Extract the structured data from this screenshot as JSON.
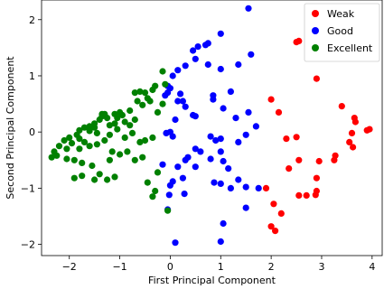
{
  "chart_data": {
    "type": "scatter",
    "xlabel": "First Principal Component",
    "ylabel": "Second Principal Component",
    "xlim": [
      -2.55,
      4.2
    ],
    "ylim": [
      -2.2,
      2.35
    ],
    "xticks": [
      -2,
      -1,
      0,
      1,
      2,
      3,
      4
    ],
    "yticks": [
      -2,
      -1,
      0,
      1,
      2
    ],
    "xtick_labels": [
      "−2",
      "−1",
      "0",
      "1",
      "2",
      "3",
      "4"
    ],
    "ytick_labels": [
      "−2",
      "−1",
      "0",
      "1",
      "2"
    ],
    "grid": false,
    "legend_position": "top-right",
    "series": [
      {
        "name": "Weak",
        "color": "#ff0000",
        "points": [
          [
            2.5,
            1.6
          ],
          [
            2.55,
            1.62
          ],
          [
            2.9,
            0.95
          ],
          [
            2.0,
            0.58
          ],
          [
            2.15,
            0.35
          ],
          [
            3.4,
            0.46
          ],
          [
            3.65,
            0.25
          ],
          [
            3.67,
            0.18
          ],
          [
            3.9,
            0.03
          ],
          [
            3.95,
            0.05
          ],
          [
            2.3,
            -0.12
          ],
          [
            2.5,
            -0.09
          ],
          [
            3.6,
            -0.02
          ],
          [
            3.55,
            -0.18
          ],
          [
            3.62,
            -0.27
          ],
          [
            2.55,
            -0.5
          ],
          [
            2.95,
            -0.52
          ],
          [
            3.25,
            -0.5
          ],
          [
            3.27,
            -0.42
          ],
          [
            2.35,
            -0.65
          ],
          [
            2.55,
            -1.13
          ],
          [
            2.7,
            -1.13
          ],
          [
            2.88,
            -1.12
          ],
          [
            2.9,
            -0.82
          ],
          [
            2.9,
            -1.05
          ],
          [
            1.9,
            -1.0
          ],
          [
            2.05,
            -1.28
          ],
          [
            2.2,
            -1.45
          ],
          [
            2.0,
            -1.68
          ],
          [
            2.08,
            -1.76
          ]
        ]
      },
      {
        "name": "Good",
        "color": "#0000ff",
        "points": [
          [
            1.55,
            2.2
          ],
          [
            1.0,
            1.75
          ],
          [
            0.75,
            1.58
          ],
          [
            0.7,
            1.55
          ],
          [
            0.55,
            1.52
          ],
          [
            0.45,
            1.45
          ],
          [
            1.6,
            1.38
          ],
          [
            1.0,
            1.12
          ],
          [
            0.5,
            1.3
          ],
          [
            0.3,
            1.18
          ],
          [
            0.15,
            1.1
          ],
          [
            1.35,
            1.2
          ],
          [
            0.75,
            1.2
          ],
          [
            0.05,
            1.0
          ],
          [
            -0.05,
            0.82
          ],
          [
            0.0,
            0.78
          ],
          [
            -0.05,
            0.7
          ],
          [
            -0.1,
            0.65
          ],
          [
            0.15,
            0.55
          ],
          [
            0.25,
            0.55
          ],
          [
            0.2,
            0.68
          ],
          [
            0.3,
            0.45
          ],
          [
            0.45,
            0.3
          ],
          [
            0.5,
            0.28
          ],
          [
            1.2,
            0.72
          ],
          [
            0.85,
            0.65
          ],
          [
            0.85,
            0.58
          ],
          [
            1.05,
            0.42
          ],
          [
            1.55,
            0.35
          ],
          [
            1.7,
            0.1
          ],
          [
            0.1,
            0.22
          ],
          [
            0.0,
            0.0
          ],
          [
            -0.08,
            -0.02
          ],
          [
            0.05,
            -0.08
          ],
          [
            0.5,
            -0.3
          ],
          [
            0.6,
            -0.35
          ],
          [
            0.8,
            -0.08
          ],
          [
            0.9,
            -0.15
          ],
          [
            1.0,
            -0.12
          ],
          [
            1.0,
            -0.35
          ],
          [
            1.3,
            0.25
          ],
          [
            1.35,
            -0.18
          ],
          [
            1.5,
            -0.05
          ],
          [
            1.05,
            -0.52
          ],
          [
            0.5,
            -0.62
          ],
          [
            0.8,
            -0.48
          ],
          [
            0.3,
            -0.5
          ],
          [
            0.35,
            -0.45
          ],
          [
            0.15,
            -0.62
          ],
          [
            0.05,
            -0.88
          ],
          [
            0.0,
            -0.95
          ],
          [
            0.25,
            -0.82
          ],
          [
            0.28,
            -1.1
          ],
          [
            -0.02,
            -1.12
          ],
          [
            -0.05,
            -1.38
          ],
          [
            0.87,
            -0.9
          ],
          [
            1.0,
            -0.92
          ],
          [
            1.15,
            -0.65
          ],
          [
            1.2,
            -1.0
          ],
          [
            1.75,
            -1.0
          ],
          [
            1.35,
            -0.85
          ],
          [
            1.5,
            -0.98
          ],
          [
            1.5,
            -1.35
          ],
          [
            -0.15,
            -0.58
          ],
          [
            1.05,
            -1.63
          ],
          [
            0.1,
            -1.97
          ],
          [
            1.0,
            -1.95
          ]
        ]
      },
      {
        "name": "Excellent",
        "color": "#008000",
        "points": [
          [
            -0.15,
            1.08
          ],
          [
            -0.1,
            0.85
          ],
          [
            -0.3,
            0.82
          ],
          [
            -0.35,
            0.75
          ],
          [
            -0.5,
            0.7
          ],
          [
            -0.6,
            0.72
          ],
          [
            -0.7,
            0.7
          ],
          [
            -0.4,
            0.55
          ],
          [
            -0.55,
            0.48
          ],
          [
            -0.65,
            0.55
          ],
          [
            -0.15,
            0.5
          ],
          [
            -0.25,
            0.35
          ],
          [
            -0.8,
            0.38
          ],
          [
            -1.0,
            0.35
          ],
          [
            -1.1,
            0.32
          ],
          [
            -1.3,
            0.32
          ],
          [
            -1.35,
            0.28
          ],
          [
            -1.25,
            0.25
          ],
          [
            -1.4,
            0.22
          ],
          [
            -1.5,
            0.15
          ],
          [
            -1.6,
            0.1
          ],
          [
            -1.7,
            0.08
          ],
          [
            -1.8,
            0.03
          ],
          [
            -1.85,
            -0.05
          ],
          [
            -2.0,
            -0.1
          ],
          [
            -2.1,
            -0.15
          ],
          [
            -2.2,
            -0.25
          ],
          [
            -2.3,
            -0.35
          ],
          [
            -2.35,
            -0.45
          ],
          [
            -2.25,
            -0.42
          ],
          [
            -2.05,
            -0.3
          ],
          [
            -1.95,
            -0.2
          ],
          [
            -1.8,
            -0.12
          ],
          [
            -1.7,
            -0.18
          ],
          [
            -1.6,
            0.02
          ],
          [
            -1.5,
            0.08
          ],
          [
            -1.45,
            -0.02
          ],
          [
            -1.2,
            0.12
          ],
          [
            -1.1,
            0.15
          ],
          [
            -1.05,
            0.05
          ],
          [
            -0.9,
            0.18
          ],
          [
            -0.8,
            0.12
          ],
          [
            -0.7,
            0.22
          ],
          [
            -0.75,
            -0.02
          ],
          [
            -0.9,
            -0.1
          ],
          [
            -1.2,
            -0.05
          ],
          [
            -1.3,
            -0.15
          ],
          [
            -1.45,
            -0.22
          ],
          [
            -1.6,
            -0.25
          ],
          [
            -1.8,
            -0.3
          ],
          [
            -1.9,
            -0.5
          ],
          [
            -1.75,
            -0.55
          ],
          [
            -1.55,
            -0.6
          ],
          [
            -1.4,
            -0.75
          ],
          [
            -1.5,
            -0.85
          ],
          [
            -1.75,
            -0.78
          ],
          [
            -1.9,
            -0.82
          ],
          [
            -1.2,
            -0.5
          ],
          [
            -1.0,
            -0.4
          ],
          [
            -1.1,
            -0.8
          ],
          [
            -1.25,
            -0.85
          ],
          [
            -0.7,
            -0.5
          ],
          [
            -0.5,
            -0.15
          ],
          [
            -0.6,
            -0.18
          ],
          [
            -0.35,
            -0.1
          ],
          [
            -0.55,
            -0.45
          ],
          [
            -0.45,
            -0.9
          ],
          [
            -0.3,
            -1.05
          ],
          [
            -0.35,
            -1.15
          ],
          [
            -0.05,
            -1.4
          ],
          [
            -0.25,
            -0.72
          ],
          [
            -1.15,
            -0.35
          ],
          [
            -0.85,
            -0.35
          ],
          [
            -2.05,
            -0.48
          ],
          [
            -0.95,
            0.3
          ],
          [
            -1.05,
            0.25
          ],
          [
            -1.35,
            0.32
          ],
          [
            -0.45,
            0.6
          ]
        ]
      }
    ]
  }
}
